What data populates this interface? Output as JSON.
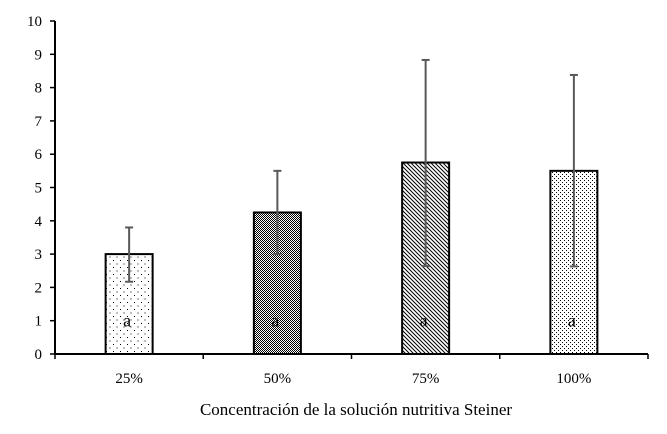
{
  "chart_data": {
    "type": "bar",
    "title": "",
    "xlabel": "Concentración de la solución nutritiva Steiner",
    "ylabel": "",
    "ylim": [
      0,
      10
    ],
    "yticks": [
      "0",
      "1",
      "2",
      "3",
      "4",
      "5",
      "6",
      "7",
      "8",
      "9",
      "10"
    ],
    "categories": [
      "25%",
      "50%",
      "75%",
      "100%"
    ],
    "values": [
      3.0,
      4.25,
      5.75,
      5.5
    ],
    "error_upper": [
      3.8,
      5.5,
      8.83,
      8.38
    ],
    "error_lower": [
      2.17,
      3.0,
      2.64,
      2.63
    ],
    "bar_labels": [
      "a",
      "a",
      "a",
      "a"
    ],
    "patterns": [
      "sparse-dots",
      "dense-checker",
      "diagonal-hatch",
      "dotted-grid"
    ],
    "grid": false,
    "colors": {
      "bar_stroke": "#000000",
      "error_bar": "#595959"
    }
  }
}
